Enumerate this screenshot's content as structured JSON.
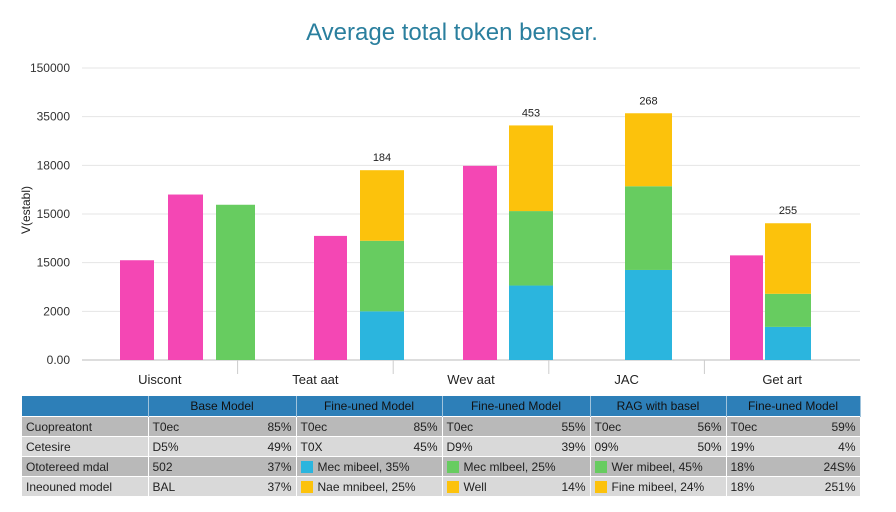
{
  "chart_data": {
    "type": "bar",
    "title": "Average total token benser.",
    "ylabel": "V(establ)",
    "yticks": [
      "150000",
      "35000",
      "18000",
      "15000",
      "15000",
      "2000",
      "0.00"
    ],
    "ylim": [
      0,
      6
    ],
    "categories": [
      "Uiscont",
      "Teat aat",
      "Wev aat",
      "JAC",
      "Get art"
    ],
    "colors": {
      "pink": "#f447b4",
      "green": "#67cc60",
      "blue": "#2bb5de",
      "yellow": "#fcc20c"
    },
    "series": [
      {
        "values": [
          2.05,
          null,
          null,
          null,
          2.15
        ]
      },
      {
        "values": [
          3.4,
          2.55,
          3.99,
          null,
          null
        ]
      },
      {
        "values": [
          3.19,
          null,
          null,
          null,
          null
        ]
      },
      {
        "values": [
          null,
          1.0,
          1.53,
          1.85,
          0.68
        ]
      },
      {
        "values": [
          null,
          1.45,
          1.53,
          1.72,
          0.68
        ]
      },
      {
        "values": [
          null,
          1.45,
          1.76,
          1.5,
          1.45
        ]
      }
    ],
    "totals": [
      null,
      "184",
      "453",
      "268",
      "255"
    ]
  },
  "table": {
    "headers": [
      "",
      "Base Model",
      "Fine-uned Model",
      "Fine-uned Model",
      "RAG with basel",
      "Fine-uned Model"
    ],
    "rows": [
      {
        "label": "Cuopreatont",
        "cells": [
          [
            "T0ec",
            "85%"
          ],
          [
            "T0ec",
            "85%"
          ],
          [
            "T0ec",
            "55%"
          ],
          [
            "T0ec",
            "56%"
          ],
          [
            "T0ec",
            "59%"
          ]
        ]
      },
      {
        "label": "Cetesire",
        "cells": [
          [
            "D5%",
            "49%"
          ],
          [
            "T0X",
            "45%"
          ],
          [
            "D9%",
            "39%"
          ],
          [
            "09%",
            "50%"
          ],
          [
            "19%",
            "4%"
          ]
        ]
      },
      {
        "label": "Ototereed mdal",
        "cells": [
          [
            "502",
            "37%"
          ],
          [
            "Mec mibeel, 35%",
            ""
          ],
          [
            "Mec mlbeel, 25%",
            ""
          ],
          [
            "Wer mibeel, 45%",
            ""
          ],
          [
            "18%",
            "24S%"
          ]
        ]
      },
      {
        "label": "Ineouned model",
        "cells": [
          [
            "BAL",
            "37%"
          ],
          [
            "Nae mnibeel, 25%",
            ""
          ],
          [
            "Well",
            "14%"
          ],
          [
            "Fine mibeel, 24%",
            ""
          ],
          [
            "18%",
            "251%"
          ]
        ]
      }
    ]
  }
}
